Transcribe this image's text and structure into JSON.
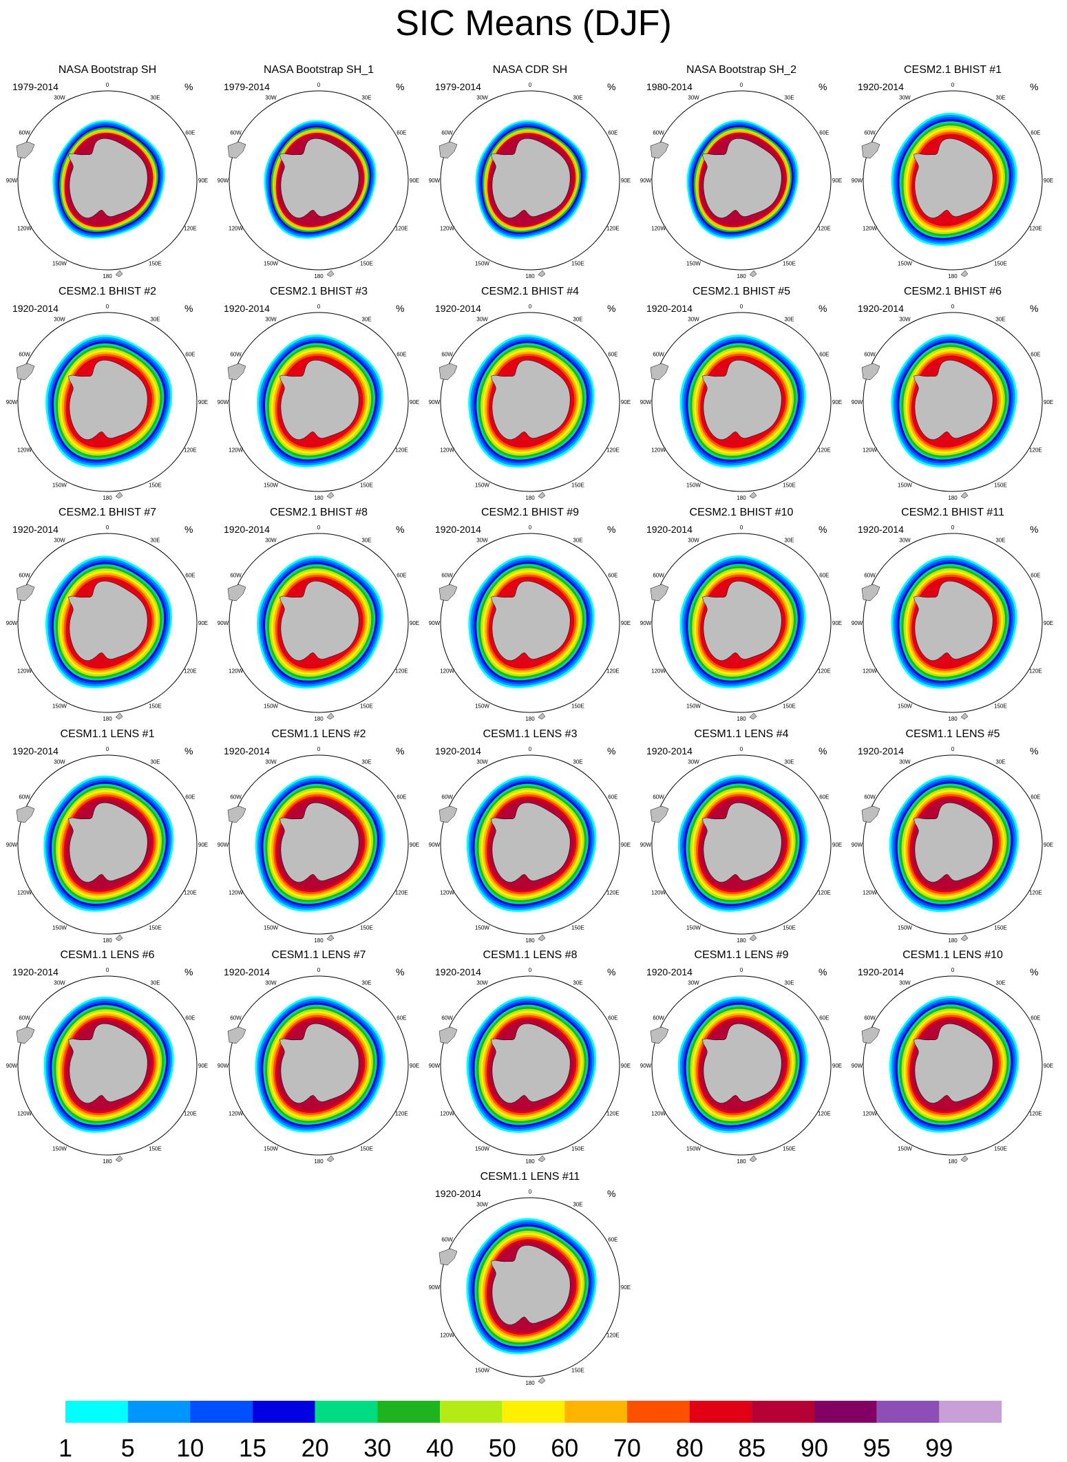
{
  "title": "SIC Means (DJF)",
  "chart_data": {
    "type": "polar-map-grid",
    "units": "%",
    "longitude_labels": [
      "0",
      "30E",
      "60E",
      "90E",
      "120E",
      "150E",
      "180",
      "150W",
      "120W",
      "90W",
      "60W",
      "30W"
    ],
    "panels": [
      {
        "title": "NASA Bootstrap SH",
        "period": "1979-2014",
        "kind": "obs"
      },
      {
        "title": "NASA Bootstrap SH_1",
        "period": "1979-2014",
        "kind": "obs"
      },
      {
        "title": "NASA CDR SH",
        "period": "1979-2014",
        "kind": "obs"
      },
      {
        "title": "NASA Bootstrap SH_2",
        "period": "1980-2014",
        "kind": "obs"
      },
      {
        "title": "CESM2.1 BHIST #1",
        "period": "1920-2014",
        "kind": "cesm2"
      },
      {
        "title": "CESM2.1 BHIST #2",
        "period": "1920-2014",
        "kind": "cesm2"
      },
      {
        "title": "CESM2.1 BHIST #3",
        "period": "1920-2014",
        "kind": "cesm2"
      },
      {
        "title": "CESM2.1 BHIST #4",
        "period": "1920-2014",
        "kind": "cesm2"
      },
      {
        "title": "CESM2.1 BHIST #5",
        "period": "1920-2014",
        "kind": "cesm2"
      },
      {
        "title": "CESM2.1 BHIST #6",
        "period": "1920-2014",
        "kind": "cesm2"
      },
      {
        "title": "CESM2.1 BHIST #7",
        "period": "1920-2014",
        "kind": "cesm2"
      },
      {
        "title": "CESM2.1 BHIST #8",
        "period": "1920-2014",
        "kind": "cesm2"
      },
      {
        "title": "CESM2.1 BHIST #9",
        "period": "1920-2014",
        "kind": "cesm2"
      },
      {
        "title": "CESM2.1 BHIST #10",
        "period": "1920-2014",
        "kind": "cesm2"
      },
      {
        "title": "CESM2.1 BHIST #11",
        "period": "1920-2014",
        "kind": "cesm2"
      },
      {
        "title": "CESM1.1 LENS #1",
        "period": "1920-2014",
        "kind": "cesm1"
      },
      {
        "title": "CESM1.1 LENS #2",
        "period": "1920-2014",
        "kind": "cesm1"
      },
      {
        "title": "CESM1.1 LENS #3",
        "period": "1920-2014",
        "kind": "cesm1"
      },
      {
        "title": "CESM1.1 LENS #4",
        "period": "1920-2014",
        "kind": "cesm1"
      },
      {
        "title": "CESM1.1 LENS #5",
        "period": "1920-2014",
        "kind": "cesm1"
      },
      {
        "title": "CESM1.1 LENS #6",
        "period": "1920-2014",
        "kind": "cesm1"
      },
      {
        "title": "CESM1.1 LENS #7",
        "period": "1920-2014",
        "kind": "cesm1"
      },
      {
        "title": "CESM1.1 LENS #8",
        "period": "1920-2014",
        "kind": "cesm1"
      },
      {
        "title": "CESM1.1 LENS #9",
        "period": "1920-2014",
        "kind": "cesm1"
      },
      {
        "title": "CESM1.1 LENS #10",
        "period": "1920-2014",
        "kind": "cesm1"
      },
      {
        "title": "CESM1.1 LENS #11",
        "period": "1920-2014",
        "kind": "cesm1"
      }
    ],
    "colorbar": {
      "labels": [
        "1",
        "5",
        "10",
        "15",
        "20",
        "30",
        "40",
        "50",
        "60",
        "70",
        "80",
        "85",
        "90",
        "95",
        "99"
      ],
      "colors": [
        "#00ffff",
        "#0096ff",
        "#0050ff",
        "#0000e1",
        "#00dc82",
        "#1eb41e",
        "#b4eb14",
        "#fff000",
        "#ffb400",
        "#ff5000",
        "#e10014",
        "#b40032",
        "#820064",
        "#8c50b4",
        "#c8a0d7"
      ]
    },
    "land_color": "#bebebe"
  }
}
